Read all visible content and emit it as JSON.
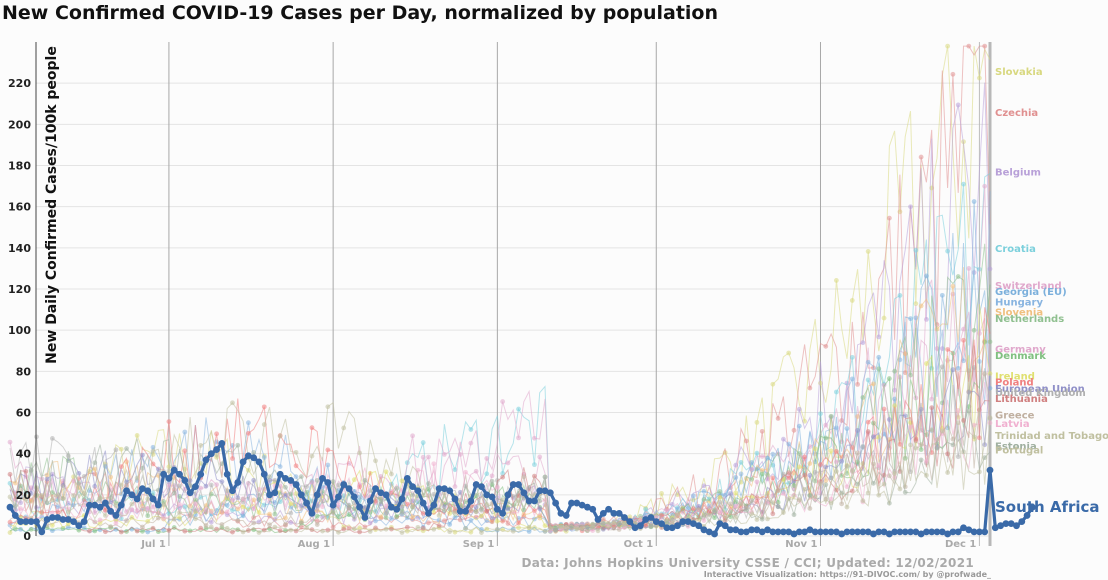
{
  "chart_data": {
    "type": "line",
    "title": "New Confirmed COVID-19 Cases per Day, normalized by population",
    "xlabel": "",
    "ylabel": "New Daily Confirmed Cases/100k people",
    "ylim": [
      0,
      240
    ],
    "yticks": [
      0,
      20,
      40,
      60,
      80,
      100,
      120,
      140,
      160,
      180,
      200,
      220
    ],
    "x_range_days": [
      -30,
      155
    ],
    "x_ticks": [
      {
        "label": "Jul 1",
        "day": 0
      },
      {
        "label": "Aug 1",
        "day": 31
      },
      {
        "label": "Sep 1",
        "day": 62
      },
      {
        "label": "Oct 1",
        "day": 92
      },
      {
        "label": "Nov 1",
        "day": 123
      },
      {
        "label": "Dec 1",
        "day": 153
      }
    ],
    "grid": true,
    "highlight_series": {
      "name": "South Africa",
      "color": "#3a6aa8",
      "start_day": -30,
      "values": [
        14,
        10,
        7,
        7,
        7,
        7,
        2,
        8,
        9,
        9,
        8,
        8,
        7,
        5,
        7,
        15,
        15,
        14,
        16,
        12,
        10,
        15,
        22,
        20,
        18,
        23,
        22,
        18,
        15,
        30,
        28,
        32,
        30,
        27,
        21,
        24,
        30,
        37,
        40,
        42,
        45,
        30,
        22,
        26,
        36,
        39,
        38,
        36,
        30,
        20,
        21,
        30,
        28,
        27,
        25,
        20,
        16,
        11,
        20,
        28,
        26,
        15,
        19,
        25,
        23,
        19,
        14,
        9,
        17,
        23,
        21,
        20,
        14,
        13,
        18,
        28,
        24,
        22,
        16,
        11,
        15,
        23,
        23,
        22,
        18,
        12,
        12,
        17,
        25,
        24,
        20,
        19,
        13,
        11,
        20,
        25,
        25,
        21,
        17,
        17,
        22,
        22,
        21,
        16,
        11,
        10,
        16,
        16,
        15,
        14,
        13,
        8,
        11,
        13,
        11,
        11,
        9,
        7,
        4,
        5,
        8,
        9,
        7,
        6,
        4,
        4,
        5,
        7,
        7,
        6,
        5,
        3,
        2,
        1,
        6,
        5,
        3,
        3,
        2,
        2,
        3,
        3,
        2,
        3,
        2,
        2,
        2,
        2,
        1,
        2,
        2,
        3,
        2,
        2,
        2,
        2,
        2,
        1,
        2,
        2,
        2,
        2,
        2,
        1,
        2,
        2,
        1,
        2,
        2,
        2,
        2,
        2,
        1,
        2,
        2,
        2,
        2,
        1,
        2,
        2,
        4,
        3,
        2,
        2,
        2,
        32,
        4,
        5,
        6,
        6,
        5,
        7,
        10,
        14
      ]
    },
    "end_labels": [
      {
        "name": "Slovakia",
        "value": 226,
        "color": "#d8d880"
      },
      {
        "name": "Czechia",
        "value": 206,
        "color": "#e09090"
      },
      {
        "name": "Belgium",
        "value": 177,
        "color": "#b8a0d8"
      },
      {
        "name": "Croatia",
        "value": 140,
        "color": "#7cd0dc"
      },
      {
        "name": "Switzerland",
        "value": 122,
        "color": "#e0a8cc"
      },
      {
        "name": "Georgia (EU)",
        "value": 119,
        "color": "#7cb0dc"
      },
      {
        "name": "Hungary",
        "value": 114,
        "color": "#88b4e0"
      },
      {
        "name": "Slovenia",
        "value": 109,
        "color": "#f0c080"
      },
      {
        "name": "Netherlands",
        "value": 106,
        "color": "#90c090"
      },
      {
        "name": "Germany",
        "value": 91,
        "color": "#e0a8cc"
      },
      {
        "name": "Denmark",
        "value": 88,
        "color": "#80c080"
      },
      {
        "name": "Ireland",
        "value": 78,
        "color": "#e0e070"
      },
      {
        "name": "Poland",
        "value": 75,
        "color": "#f08080"
      },
      {
        "name": "European Union",
        "value": 72,
        "color": "#9090c8"
      },
      {
        "name": "United Kingdom",
        "value": 70,
        "color": "#b0b0b0"
      },
      {
        "name": "Lithuania",
        "value": 67,
        "color": "#d08080"
      },
      {
        "name": "Greece",
        "value": 59,
        "color": "#c0b0a0"
      },
      {
        "name": "Latvia",
        "value": 55,
        "color": "#f0b0d0"
      },
      {
        "name": "Trinidad and Tobago",
        "value": 49,
        "color": "#c0c0a0"
      },
      {
        "name": "Estonia",
        "value": 44,
        "color": "#a0b0a0"
      },
      {
        "name": "Portugal",
        "value": 42,
        "color": "#c0c0a0"
      }
    ],
    "source": "Data: Johns Hopkins University CSSE / CCI; Updated: 12/02/2021",
    "credit": "Interactive Visualization: https://91-DIVOC.com/ by @profwade_"
  }
}
